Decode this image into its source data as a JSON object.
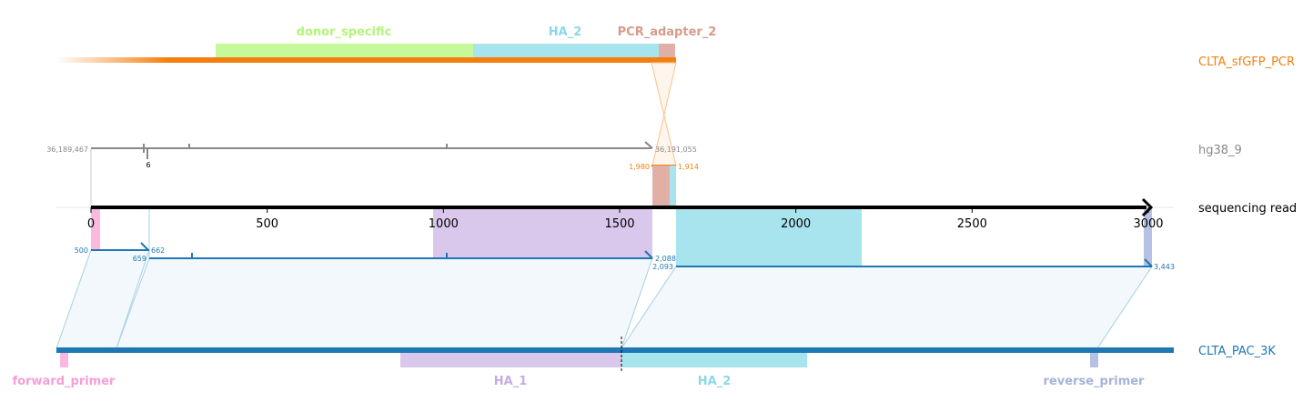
{
  "references": {
    "top": {
      "name": "CLTA_sfGFP_PCR",
      "color": "#f57f0e"
    },
    "genome": {
      "name": "hg38_9",
      "color": "#888888"
    },
    "read": {
      "name": "sequencing read",
      "color": "#000000"
    },
    "bottom": {
      "name": "CLTA_PAC_3K",
      "color": "#1f77b4"
    }
  },
  "top_features": [
    {
      "name": "donor_specific",
      "color": "#b3f57a"
    },
    {
      "name": "HA_2",
      "color": "#89d9e8"
    },
    {
      "name": "PCR_adapter_2",
      "color": "#d99a8a"
    }
  ],
  "bottom_features": [
    {
      "name": "forward_primer",
      "color": "#f59ed6"
    },
    {
      "name": "HA_1",
      "color": "#c5ade0"
    },
    {
      "name": "HA_2",
      "color": "#89d9e8"
    },
    {
      "name": "reverse_primer",
      "color": "#a6b3d9"
    }
  ],
  "read_axis": {
    "ticks": [
      "0",
      "500",
      "1000",
      "1500",
      "2000",
      "2500",
      "3000"
    ],
    "range": [
      0,
      3000
    ]
  },
  "genome_coords": {
    "start": "36,189,467",
    "end": "36,191,055",
    "small": "6"
  },
  "alignment_coords": {
    "top_left": "1,980",
    "top_right": "1,914",
    "a1_start": "500",
    "a1_end": "662",
    "a2_start": "659",
    "a2_end": "2,088",
    "a3_start": "2,093",
    "a3_end": "3,443"
  }
}
